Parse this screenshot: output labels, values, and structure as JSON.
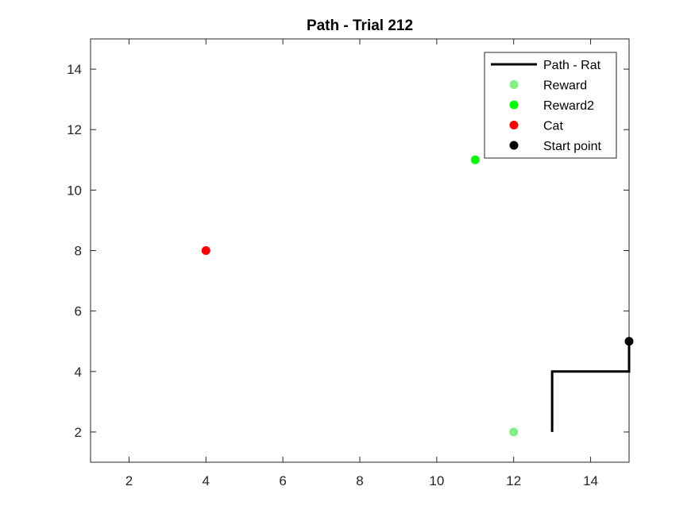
{
  "chart_data": {
    "type": "scatter",
    "title": "Path - Trial 212",
    "xlabel": "",
    "ylabel": "",
    "xlim": [
      1,
      15
    ],
    "ylim": [
      1,
      15
    ],
    "xticks": [
      2,
      4,
      6,
      8,
      10,
      12,
      14
    ],
    "yticks": [
      2,
      4,
      6,
      8,
      10,
      12,
      14
    ],
    "grid": false,
    "legend_position": "top-right",
    "series": [
      {
        "name": "Path - Rat",
        "kind": "line",
        "color": "#000000",
        "x": [
          13,
          13,
          15,
          15
        ],
        "y": [
          2,
          4,
          4,
          5
        ]
      },
      {
        "name": "Reward",
        "kind": "point",
        "color": "#80f080",
        "x": [
          12
        ],
        "y": [
          2
        ]
      },
      {
        "name": "Reward2",
        "kind": "point",
        "color": "#00ff00",
        "x": [
          11
        ],
        "y": [
          11
        ]
      },
      {
        "name": "Cat",
        "kind": "point",
        "color": "#ff0000",
        "x": [
          4
        ],
        "y": [
          8
        ]
      },
      {
        "name": "Start point",
        "kind": "point",
        "color": "#000000",
        "x": [
          15
        ],
        "y": [
          5
        ]
      }
    ]
  }
}
